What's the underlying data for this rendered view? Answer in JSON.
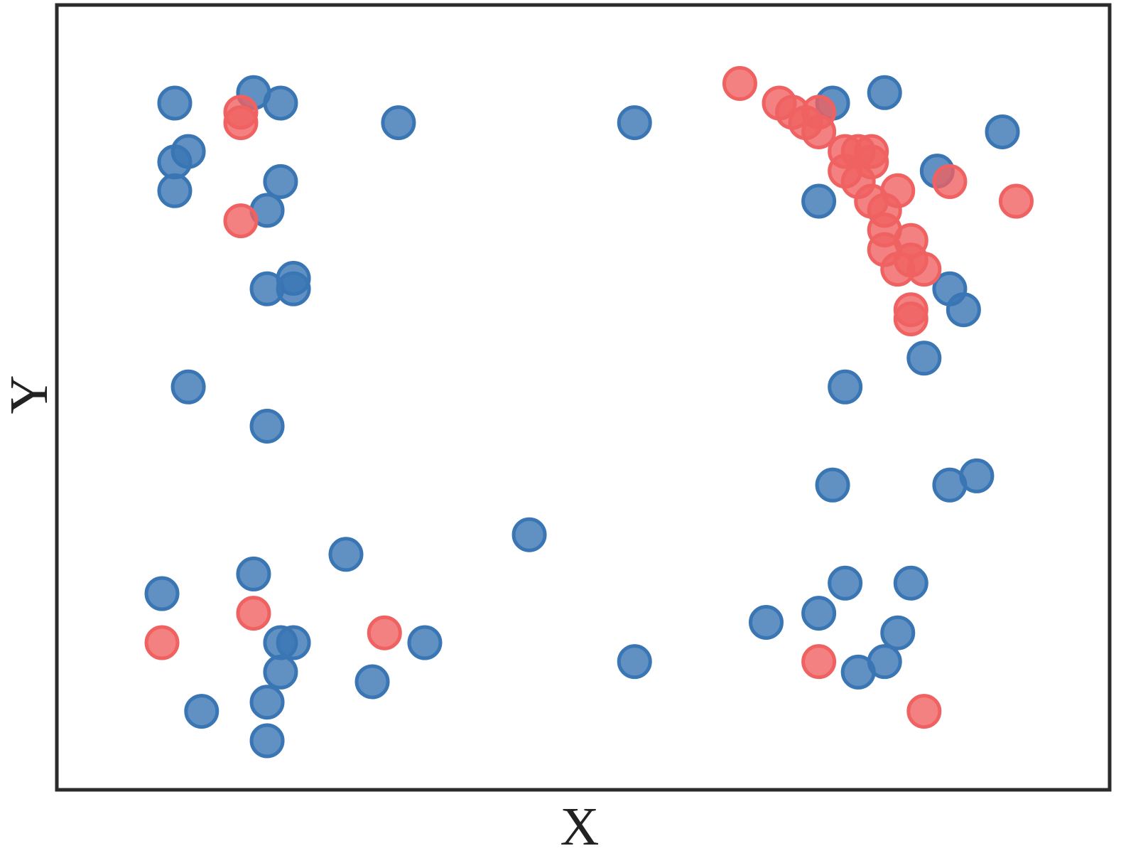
{
  "chart_data": {
    "type": "scatter",
    "x_label": "X",
    "y_label": "Y",
    "xlim": [
      0,
      80
    ],
    "ylim": [
      0,
      60
    ],
    "series": [
      {
        "color": "#3a76b4",
        "x": [
          8.96,
          14.95,
          17.0,
          25.96,
          43.9,
          9.99,
          8.96,
          8.96,
          17.0,
          15.98,
          17.98,
          15.98,
          17.98,
          9.99,
          15.98,
          58.95,
          62.9,
          71.85,
          66.9,
          57.9,
          67.85,
          68.9,
          65.9,
          59.9,
          58.95,
          67.85,
          69.9,
          35.9,
          21.97,
          14.95,
          7.99,
          17.0,
          17.98,
          27.96,
          17.0,
          23.97,
          15.98,
          11.0,
          15.98,
          43.9,
          53.9,
          57.9,
          59.9,
          64.9,
          63.9,
          62.9,
          60.9
        ],
        "values": [
          52.5,
          53.3,
          52.5,
          51.0,
          51.0,
          48.8,
          48.0,
          45.8,
          46.5,
          44.3,
          39.1,
          38.3,
          38.3,
          30.8,
          27.8,
          52.5,
          53.3,
          50.3,
          47.3,
          45.0,
          38.3,
          36.7,
          33.0,
          30.8,
          23.3,
          23.3,
          24.0,
          19.5,
          18.0,
          16.5,
          15.0,
          11.25,
          11.25,
          11.25,
          9.0,
          8.26,
          6.7,
          6.0,
          3.75,
          9.8,
          12.8,
          13.5,
          15.8,
          15.8,
          12.0,
          9.8,
          9.0
        ]
      },
      {
        "color": "#f06262",
        "x": [
          13.98,
          13.98,
          13.98,
          51.9,
          54.9,
          55.9,
          57.9,
          56.9,
          57.9,
          59.9,
          60.9,
          61.9,
          61.9,
          59.9,
          60.9,
          63.9,
          61.9,
          62.9,
          67.85,
          72.9,
          62.9,
          64.9,
          62.9,
          64.9,
          63.9,
          65.9,
          64.9,
          64.9,
          7.99,
          14.95,
          24.9,
          57.9,
          65.9
        ],
        "values": [
          51.8,
          51.0,
          43.5,
          54.0,
          52.5,
          51.8,
          51.8,
          51.0,
          50.3,
          48.8,
          48.8,
          48.8,
          48.0,
          47.3,
          46.5,
          45.8,
          45.0,
          44.3,
          46.5,
          45.0,
          42.8,
          42.0,
          41.3,
          40.5,
          39.8,
          39.8,
          36.7,
          36.0,
          11.25,
          13.5,
          12.0,
          9.8,
          6.0
        ]
      }
    ]
  }
}
